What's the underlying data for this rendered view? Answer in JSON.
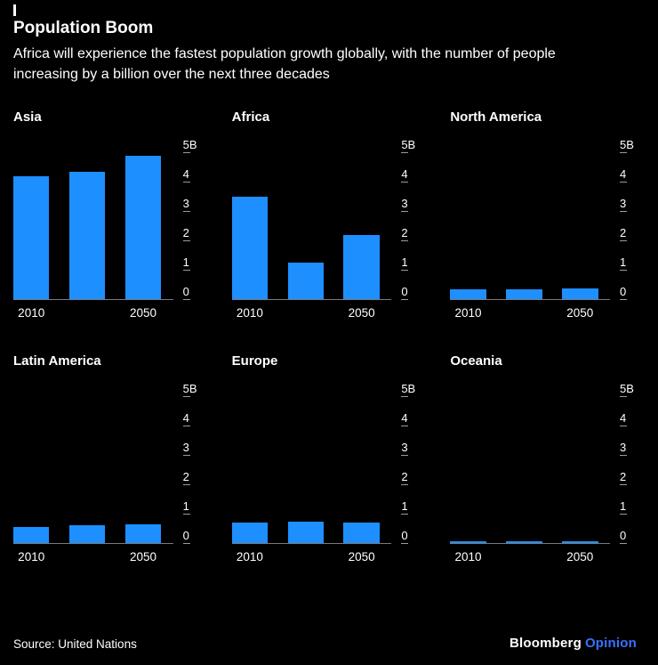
{
  "header": {
    "title": "Population Boom",
    "subtitle": "Africa will experience the fastest population growth globally, with the number of people increasing by a billion over the next three decades"
  },
  "chart_data": {
    "type": "bar",
    "unit": "billions of people",
    "ylim": [
      0,
      5
    ],
    "y_ticks": [
      "5B",
      "4",
      "3",
      "2",
      "1",
      "0"
    ],
    "x_tick_labels": [
      "2010",
      "2050"
    ],
    "bar_color": "#1e8fff",
    "grid": "off",
    "layout": "2 rows x 3 columns small multiples, y-axis on right",
    "charts": [
      {
        "region": "Asia",
        "values": [
          4.2,
          4.35,
          4.9
        ]
      },
      {
        "region": "Africa",
        "values": [
          3.5,
          1.25,
          2.2
        ]
      },
      {
        "region": "North America",
        "values": [
          0.34,
          0.35,
          0.37
        ]
      },
      {
        "region": "Latin America",
        "values": [
          0.55,
          0.62,
          0.64
        ]
      },
      {
        "region": "Europe",
        "values": [
          0.72,
          0.73,
          0.71
        ]
      },
      {
        "region": "Oceania",
        "values": [
          0.06,
          0.07,
          0.08
        ]
      }
    ]
  },
  "footer": {
    "source": "Source: United Nations",
    "brand": "Bloomberg",
    "brand_suffix": "Opinion",
    "accent_color": "#3772ff"
  }
}
